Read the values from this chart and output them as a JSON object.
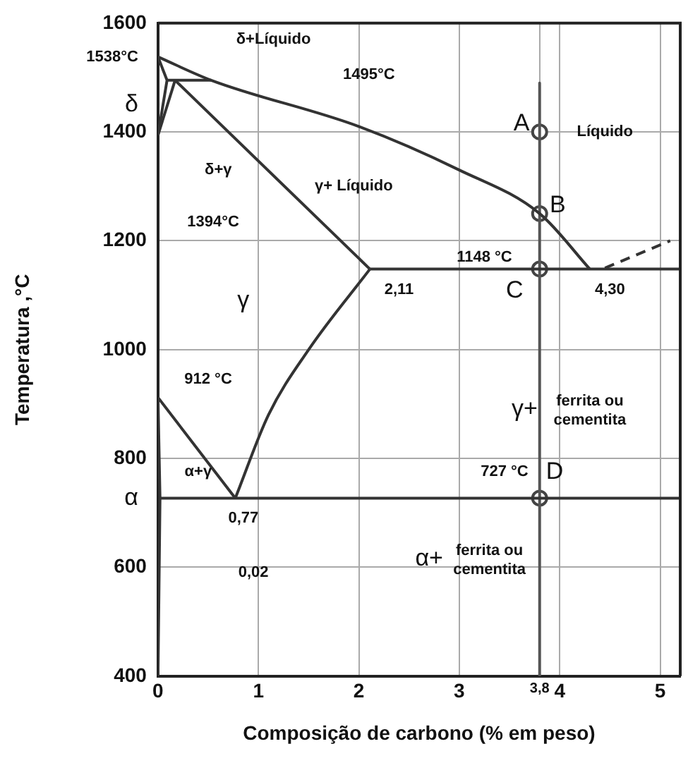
{
  "chart_data": {
    "type": "line",
    "xlabel": "Composição de carbono (% em peso)",
    "ylabel": "Temperatura ,°C",
    "xlim": [
      0,
      5.2
    ],
    "xticks": [
      0,
      1,
      2,
      3,
      {
        "value": 3.8,
        "label": "3,8"
      },
      4,
      5
    ],
    "ylim": [
      400,
      1600
    ],
    "yticks": [
      400,
      600,
      800,
      1000,
      1200,
      1400,
      1600
    ],
    "grid": true,
    "legend": false,
    "marker": "none",
    "line_style": "solid",
    "series": [
      {
        "color": "#333333",
        "x": [
          0,
          0.53,
          2,
          3,
          3.8,
          4.3
        ],
        "values": [
          1538,
          1495,
          1410,
          1330,
          1250,
          1148
        ]
      },
      {
        "color": "#333333",
        "x": [
          0,
          0.09,
          0
        ],
        "values": [
          1538,
          1495,
          1394
        ]
      },
      {
        "color": "#333333",
        "x": [
          0.09,
          0.53
        ],
        "values": [
          1495,
          1495
        ]
      },
      {
        "color": "#333333",
        "x": [
          0,
          0.17
        ],
        "values": [
          1394,
          1495
        ]
      },
      {
        "color": "#333333",
        "x": [
          0.17,
          2.11
        ],
        "values": [
          1495,
          1148
        ]
      },
      {
        "color": "#333333",
        "x": [
          2.11,
          5.2
        ],
        "values": [
          1148,
          1148
        ]
      },
      {
        "color": "#333333",
        "x": [
          2.11,
          1.5,
          1.1,
          0.77
        ],
        "values": [
          1148,
          1000,
          880,
          727
        ]
      },
      {
        "color": "#333333",
        "x": [
          0,
          0.77
        ],
        "values": [
          912,
          727
        ]
      },
      {
        "color": "#333333",
        "x": [
          0.02,
          5.2
        ],
        "values": [
          727,
          727
        ]
      },
      {
        "color": "#333333",
        "x": [
          0,
          0.02,
          0
        ],
        "values": [
          912,
          727,
          400
        ]
      },
      {
        "color": "#555555",
        "x": [
          3.8,
          3.8
        ],
        "values": [
          1490,
          400
        ]
      },
      {
        "color": "#333333",
        "x": [
          4.45,
          5.1
        ],
        "values": [
          1150,
          1200
        ],
        "line_style": "dashed"
      },
      {
        "type": "scatter",
        "marker": "circle",
        "color": "#444444",
        "x": [
          3.8,
          3.8,
          3.8,
          3.8
        ],
        "values": [
          1400,
          1250,
          1148,
          727
        ]
      }
    ],
    "annotations": [
      "1538°C",
      "δ",
      "α",
      "δ+Líquido",
      "1495°C",
      "δ+γ",
      "1394°C",
      "γ+ Líquido",
      "γ",
      "1148 °C",
      "2,11",
      "4,30",
      "A",
      "Líquido",
      "B",
      "C",
      "912 °C",
      "γ+",
      "ferrita ou",
      "cementita",
      "α+γ",
      "727 °C",
      "D",
      "0,77",
      "0,02",
      "α+",
      "ferrita ou",
      "cementita"
    ]
  }
}
